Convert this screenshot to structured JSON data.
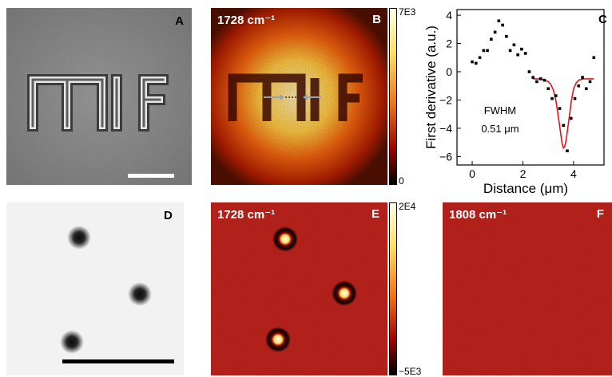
{
  "panels": {
    "a": {
      "label": "A",
      "text": "MIF"
    },
    "b": {
      "label": "B",
      "wavenumber": "1728 cm⁻¹",
      "cbar_max": "7E3",
      "cbar_min": "0"
    },
    "c": {
      "label": "C",
      "annotation_line1": "FWHM",
      "annotation_line2": "0.51 μm"
    },
    "d": {
      "label": "D"
    },
    "e": {
      "label": "E",
      "wavenumber": "1728 cm⁻¹",
      "cbar_max": "2E4",
      "cbar_min": "−5E3"
    },
    "f": {
      "label": "F",
      "wavenumber": "1808 cm⁻¹"
    }
  },
  "chart_data": {
    "type": "scatter",
    "xlabel": "Distance (μm)",
    "ylabel": "First derivative (a.u.)",
    "xlim": [
      -0.6,
      5.2
    ],
    "ylim": [
      -6.6,
      4.4
    ],
    "xticks": [
      "0",
      "2",
      "4"
    ],
    "yticks": [
      "4",
      "2",
      "0",
      "−2",
      "−4",
      "−6"
    ],
    "xtick_values": [
      0,
      2,
      4
    ],
    "ytick_values": [
      4,
      2,
      0,
      -2,
      -4,
      -6
    ],
    "series": [
      {
        "type": "scatter",
        "color": "#000000",
        "x": [
          0.0,
          0.15,
          0.3,
          0.45,
          0.6,
          0.75,
          0.9,
          1.05,
          1.2,
          1.35,
          1.5,
          1.65,
          1.8,
          1.95,
          2.1,
          2.25,
          2.4,
          2.55,
          2.7,
          2.85,
          3.0,
          3.15,
          3.3,
          3.45,
          3.6,
          3.75,
          3.9,
          4.05,
          4.2,
          4.35,
          4.5,
          4.65,
          4.8
        ],
        "y": [
          0.7,
          0.6,
          1.0,
          1.5,
          1.5,
          2.3,
          2.8,
          3.6,
          3.3,
          2.5,
          1.5,
          1.9,
          1.2,
          1.6,
          1.3,
          0.0,
          -0.4,
          -0.7,
          -0.5,
          -0.6,
          -1.2,
          -1.9,
          -1.7,
          -2.6,
          -3.8,
          -5.6,
          -3.3,
          -1.9,
          -1.0,
          -0.4,
          -1.2,
          -0.7,
          1.0
        ]
      },
      {
        "type": "line",
        "color": "#e0151b",
        "x": [
          2.4,
          2.6,
          2.8,
          3.0,
          3.1,
          3.2,
          3.3,
          3.4,
          3.5,
          3.55,
          3.6,
          3.65,
          3.7,
          3.8,
          3.9,
          4.0,
          4.1,
          4.2,
          4.4,
          4.6,
          4.8
        ],
        "y": [
          -0.5,
          -0.5,
          -0.55,
          -0.7,
          -0.9,
          -1.3,
          -2.0,
          -3.2,
          -4.5,
          -5.1,
          -5.4,
          -5.3,
          -4.9,
          -3.6,
          -2.2,
          -1.2,
          -0.8,
          -0.6,
          -0.5,
          -0.5,
          -0.5
        ]
      }
    ]
  }
}
